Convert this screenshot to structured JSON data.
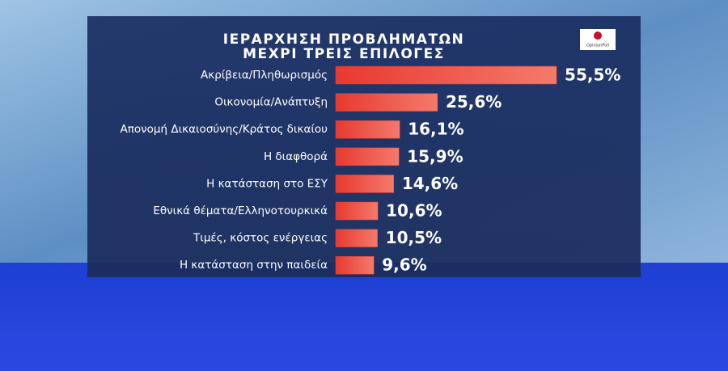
{
  "chart_data": {
    "type": "bar",
    "orientation": "horizontal",
    "title": "ΙΕΡΑΡΧΗΣΗ ΠΡΟΒΛΗΜΑΤΩΝ",
    "subtitle": "ΜΕΧΡΙ ΤΡΕΙΣ ΕΠΙΛΟΓΕΣ",
    "logo": "OpinionPoll",
    "categories": [
      "Ακρίβεια/Πληθωρισμός",
      "Οικονομία/Ανάπτυξη",
      "Απονομή Δικαιοσύνης/Κράτος δικαίου",
      "Η διαφθορά",
      "Η κατάσταση στο ΕΣΥ",
      "Εθνικά θέματα/Ελληνοτουρκικά",
      "Τιμές, κόστος ενέργειας",
      "Η κατάσταση στην παιδεία"
    ],
    "values": [
      55.5,
      25.6,
      16.1,
      15.9,
      14.6,
      10.6,
      10.5,
      9.6
    ],
    "value_labels": [
      "55,5%",
      "25,6%",
      "16,1%",
      "15,9%",
      "14,6%",
      "10,6%",
      "10,5%",
      "9,6%"
    ],
    "color": "#e8392f"
  }
}
